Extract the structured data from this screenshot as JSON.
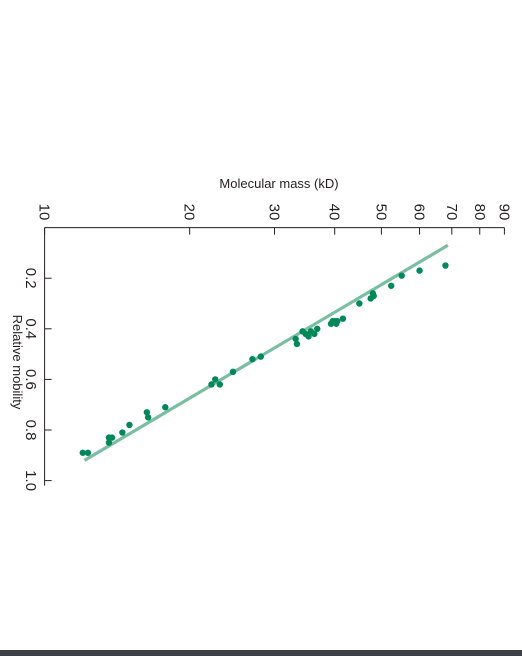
{
  "chart_data": {
    "type": "scatter",
    "orientation": "rotated-90-clockwise",
    "title": "",
    "xlabel": "Molecular mass (kD)",
    "ylabel": "Relative mobility",
    "x_scale": "log",
    "x_ticks": [
      10,
      20,
      30,
      40,
      50,
      60,
      70,
      80,
      90
    ],
    "x_tick_labels": [
      "10",
      "20",
      "30",
      "40",
      "50",
      "60",
      "70",
      "80",
      "90"
    ],
    "xlim": [
      10,
      90
    ],
    "y_ticks": [
      0.2,
      0.4,
      0.6,
      0.8,
      1.0
    ],
    "y_tick_labels": [
      "0.2",
      "0.4",
      "0.6",
      "0.8",
      "1.0"
    ],
    "ylim": [
      0.0,
      1.0
    ],
    "grid": false,
    "colors": {
      "points": "#00875a",
      "fit_line": "#79bea0",
      "text": "#231f20"
    },
    "fit_line": {
      "x": [
        12.1,
        68.7
      ],
      "y": [
        0.92,
        0.07
      ]
    },
    "points": [
      {
        "x": 12.0,
        "y": 0.89
      },
      {
        "x": 12.3,
        "y": 0.89
      },
      {
        "x": 13.6,
        "y": 0.83
      },
      {
        "x": 13.6,
        "y": 0.85
      },
      {
        "x": 13.8,
        "y": 0.83
      },
      {
        "x": 14.5,
        "y": 0.81
      },
      {
        "x": 15.0,
        "y": 0.78
      },
      {
        "x": 16.3,
        "y": 0.73
      },
      {
        "x": 16.4,
        "y": 0.75
      },
      {
        "x": 17.8,
        "y": 0.71
      },
      {
        "x": 22.2,
        "y": 0.62
      },
      {
        "x": 22.6,
        "y": 0.6
      },
      {
        "x": 23.1,
        "y": 0.62
      },
      {
        "x": 24.6,
        "y": 0.57
      },
      {
        "x": 27.0,
        "y": 0.52
      },
      {
        "x": 28.1,
        "y": 0.51
      },
      {
        "x": 33.2,
        "y": 0.44
      },
      {
        "x": 33.4,
        "y": 0.46
      },
      {
        "x": 34.3,
        "y": 0.41
      },
      {
        "x": 34.8,
        "y": 0.42
      },
      {
        "x": 35.3,
        "y": 0.43
      },
      {
        "x": 35.7,
        "y": 0.41
      },
      {
        "x": 36.3,
        "y": 0.42
      },
      {
        "x": 36.8,
        "y": 0.4
      },
      {
        "x": 39.3,
        "y": 0.38
      },
      {
        "x": 39.6,
        "y": 0.37
      },
      {
        "x": 40.0,
        "y": 0.37
      },
      {
        "x": 40.3,
        "y": 0.38
      },
      {
        "x": 40.5,
        "y": 0.37
      },
      {
        "x": 41.6,
        "y": 0.36
      },
      {
        "x": 45.0,
        "y": 0.3
      },
      {
        "x": 47.5,
        "y": 0.28
      },
      {
        "x": 48.0,
        "y": 0.26
      },
      {
        "x": 48.2,
        "y": 0.27
      },
      {
        "x": 52.4,
        "y": 0.23
      },
      {
        "x": 55.1,
        "y": 0.19
      },
      {
        "x": 60.0,
        "y": 0.17
      },
      {
        "x": 67.9,
        "y": 0.15
      }
    ]
  }
}
